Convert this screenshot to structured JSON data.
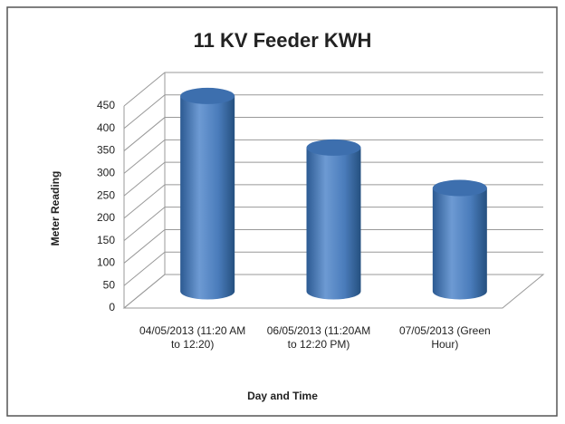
{
  "chart_data": {
    "type": "bar3d_cylinder",
    "title": "11 KV Feeder KWH",
    "x_label": "Day and Time",
    "y_label": "Meter Reading",
    "categories": [
      "04/05/2013 (11:20 AM to 12:20)",
      "06/05/2013 (11:20AM to 12:20 PM)",
      "07/05/2013 (Green Hour)"
    ],
    "values": [
      435,
      320,
      230
    ],
    "color": "#4f81bd",
    "ylim": [
      0,
      450
    ],
    "yticks": [
      0,
      50,
      100,
      150,
      200,
      250,
      300,
      350,
      400,
      450
    ],
    "grid": true
  }
}
